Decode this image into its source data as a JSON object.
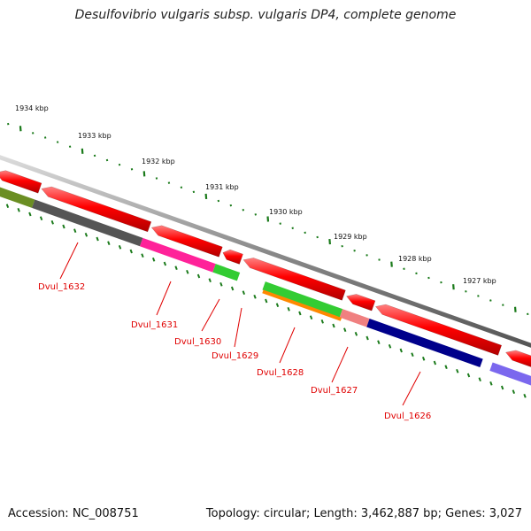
{
  "title": "Desulfovibrio vulgaris subsp. vulgaris DP4, complete genome",
  "footer": {
    "accession": "Accession: NC_008751",
    "topology": "Topology: circular; Length: 3,462,887 bp; Genes: 3,027"
  },
  "scale_labels": [
    "1934 kbp",
    "1933 kbp",
    "1932 kbp",
    "1931 kbp",
    "1930 kbp",
    "1929 kbp",
    "1928 kbp",
    "1927 kbp"
  ],
  "gene_labels": [
    "Dvul_1632",
    "Dvul_1631",
    "Dvul_1630",
    "Dvul_1629",
    "Dvul_1628",
    "Dvul_1627",
    "Dvul_1626"
  ],
  "colors": {
    "forward_gene": "#ff0000",
    "backbone": "#8a8a8a",
    "tick": "#1a7a1a",
    "label": "#e00000",
    "dvul_1632": "#555555",
    "dvul_1631": "#ff2299",
    "dvul_1630": "#33cc33",
    "dvul_1628_a": "#33cc33",
    "dvul_1628_b": "#ff8800",
    "dvul_1627": "#f08080",
    "dvul_1626": "#00008b",
    "prev_gene": "#6b8e23",
    "next_gene": "#7b68ee"
  }
}
